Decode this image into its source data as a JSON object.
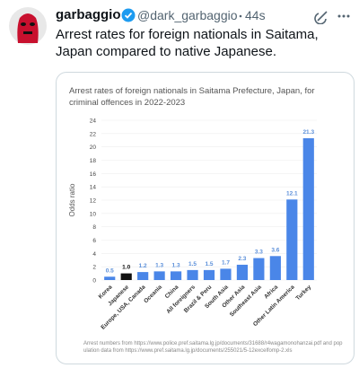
{
  "tweet": {
    "name": "garbaggio",
    "handle": "@dark_garbaggio",
    "time": "44s",
    "text": "Arrest rates for foreign nationals in Saitama, Japan compared to native Japanese."
  },
  "chart_data": {
    "type": "bar",
    "title": "Arrest rates of foreign nationals in Saitama Prefecture, Japan, for criminal offences in 2022-2023",
    "y_label": "Odds ratio",
    "categories": [
      "Korea",
      "Japanese",
      "Europe, USA, Canada",
      "Oceania",
      "China",
      "All foreigners",
      "Brazil & Peru",
      "South Asia",
      "Other Asia",
      "Southeast Asia",
      "Africa",
      "Other Latin America",
      "Turkey"
    ],
    "values": [
      0.5,
      1,
      1.2,
      1.3,
      1.3,
      1.5,
      1.5,
      1.7,
      2.3,
      3.3,
      3.6,
      12.1,
      21.3
    ],
    "value_labels": [
      "0.5",
      "1.0",
      "1.2",
      "1.3",
      "1.3",
      "1.5",
      "1.5",
      "1.7",
      "2.3",
      "3.3",
      "3.6",
      "12.1",
      "21.3"
    ],
    "colors": [
      "#4a86e8",
      "#111111",
      "#4a86e8",
      "#4a86e8",
      "#4a86e8",
      "#4a86e8",
      "#4a86e8",
      "#4a86e8",
      "#4a86e8",
      "#4a86e8",
      "#4a86e8",
      "#4a86e8",
      "#4a86e8"
    ],
    "ylim": [
      0,
      24
    ],
    "yticks": [
      0,
      2,
      4,
      6,
      8,
      10,
      12,
      14,
      16,
      18,
      20,
      22,
      24
    ],
    "grid": true,
    "footnote": "Arrest numbers from https://www.police.pref.saitama.lg.jp/documents/31688/r4wagamonohanzai.pdf and population data from https://www.pref.saitama.lg.jp/documents/255021/5-12excelfomp-2.xls"
  }
}
